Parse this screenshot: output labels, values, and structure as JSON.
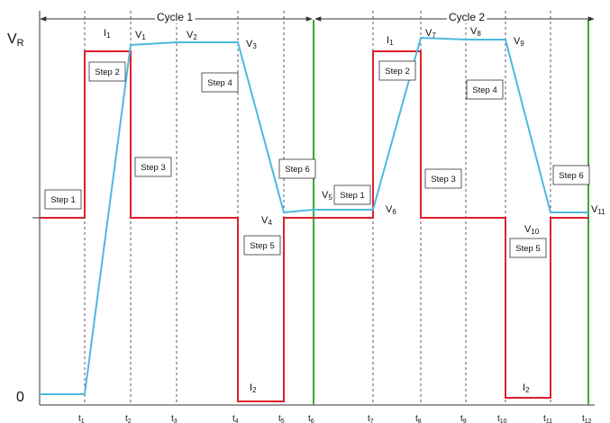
{
  "axes": {
    "y_top_label": "V",
    "y_top_sub": "R",
    "y_zero_label": "0"
  },
  "cycles": [
    {
      "label": "Cycle 1"
    },
    {
      "label": "Cycle 2"
    }
  ],
  "time_ticks": [
    {
      "base": "t",
      "sub": "1"
    },
    {
      "base": "t",
      "sub": "2"
    },
    {
      "base": "t",
      "sub": "3"
    },
    {
      "base": "t",
      "sub": "4"
    },
    {
      "base": "t",
      "sub": "5"
    },
    {
      "base": "t",
      "sub": "6"
    },
    {
      "base": "t",
      "sub": "7"
    },
    {
      "base": "t",
      "sub": "8"
    },
    {
      "base": "t",
      "sub": "9"
    },
    {
      "base": "t",
      "sub": "10"
    },
    {
      "base": "t",
      "sub": "11"
    },
    {
      "base": "t",
      "sub": "12"
    }
  ],
  "voltage_labels": [
    {
      "base": "V",
      "sub": "1"
    },
    {
      "base": "V",
      "sub": "2"
    },
    {
      "base": "V",
      "sub": "3"
    },
    {
      "base": "V",
      "sub": "4"
    },
    {
      "base": "V",
      "sub": "5"
    },
    {
      "base": "V",
      "sub": "6"
    },
    {
      "base": "V",
      "sub": "7"
    },
    {
      "base": "V",
      "sub": "8"
    },
    {
      "base": "V",
      "sub": "9"
    },
    {
      "base": "V",
      "sub": "10"
    },
    {
      "base": "V",
      "sub": "11"
    }
  ],
  "current_labels": [
    {
      "base": "I",
      "sub": "1"
    },
    {
      "base": "I",
      "sub": "2"
    },
    {
      "base": "I",
      "sub": "1"
    },
    {
      "base": "I",
      "sub": "2"
    }
  ],
  "steps": [
    "Step 1",
    "Step 2",
    "Step 3",
    "Step 4",
    "Step 5",
    "Step 6",
    "Step 1",
    "Step 2",
    "Step 3",
    "Step 4",
    "Step 5",
    "Step 6"
  ],
  "colors": {
    "current": "#e0202a",
    "voltage": "#4fb8e0",
    "cycle_boundary": "#3aaa35",
    "grid": "#333333"
  }
}
